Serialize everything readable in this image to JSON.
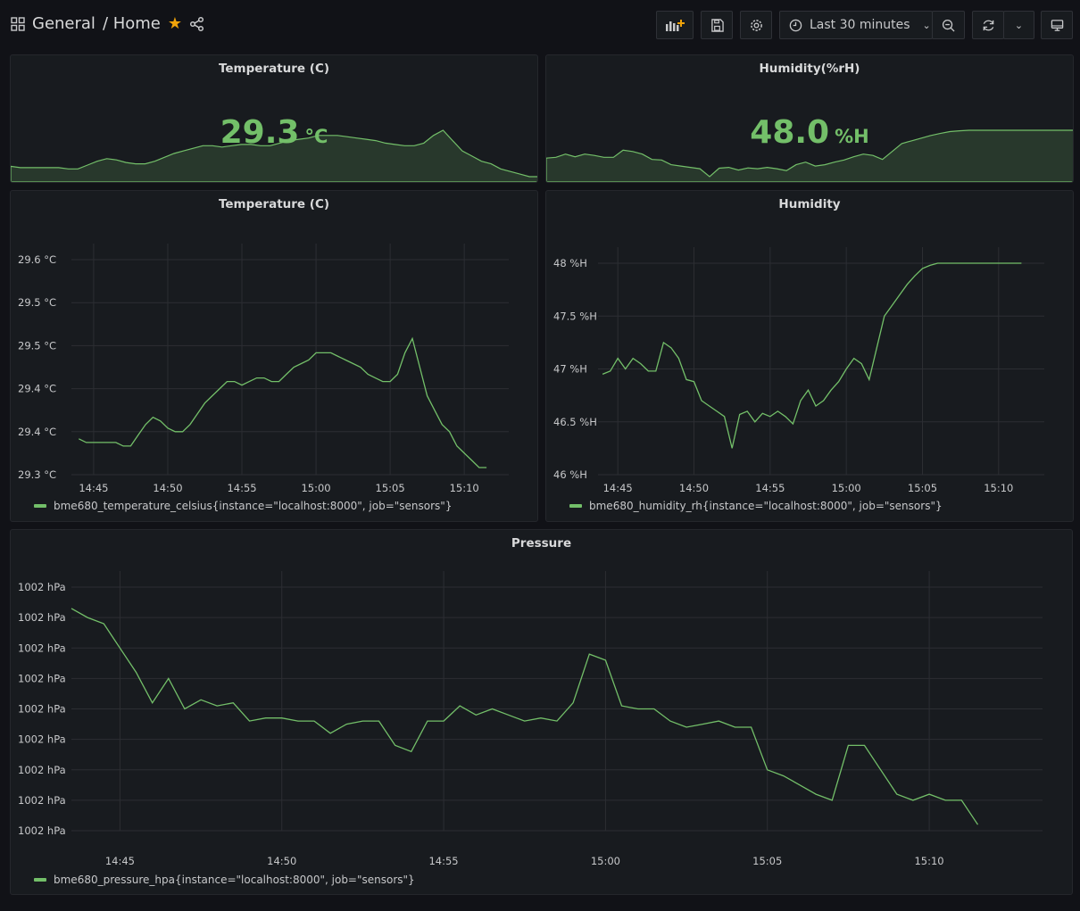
{
  "header": {
    "folder": "General",
    "dashboard": "/ Home",
    "time_range": "Last 30 minutes"
  },
  "icons": [
    "dashboard-grid-icon",
    "star-icon",
    "share-icon",
    "add-panel-icon",
    "save-icon",
    "gear-icon",
    "clock-icon",
    "chevron-down-icon",
    "zoom-out-icon",
    "refresh-icon",
    "tv-icon"
  ],
  "colors": {
    "series": "#73bf69",
    "background": "#111217",
    "panel": "#181b1f"
  },
  "stats": [
    {
      "title": "Temperature (C)",
      "value": "29.3",
      "unit": "°C"
    },
    {
      "title": "Humidity(%rH)",
      "value": "48.0",
      "unit": "%H"
    }
  ],
  "chart_data": [
    {
      "type": "line",
      "title": "Temperature (C)",
      "x_ticks": [
        "14:45",
        "14:50",
        "14:55",
        "15:00",
        "15:05",
        "15:10"
      ],
      "y_ticks": [
        "29.6 °C",
        "29.5 °C",
        "29.5 °C",
        "29.4 °C",
        "29.4 °C",
        "29.3 °C"
      ],
      "ylim": [
        29.3,
        29.6
      ],
      "legend": "bme680_temperature_celsius{instance=\"localhost:8000\", job=\"sensors\"}",
      "x": [
        "14:44",
        "14:44.5",
        "14:45",
        "14:45.5",
        "14:46",
        "14:46.5",
        "14:47",
        "14:47.5",
        "14:48",
        "14:48.5",
        "14:49",
        "14:49.5",
        "14:50",
        "14:50.5",
        "14:51",
        "14:51.5",
        "14:52",
        "14:52.5",
        "14:53",
        "14:53.5",
        "14:54",
        "14:54.5",
        "14:55",
        "14:55.5",
        "14:56",
        "14:56.5",
        "14:57",
        "14:57.5",
        "14:58",
        "14:58.5",
        "14:59",
        "14:59.5",
        "15:00",
        "15:00.5",
        "15:01",
        "15:01.5",
        "15:02",
        "15:02.5",
        "15:03",
        "15:03.5",
        "15:04",
        "15:04.5",
        "15:05",
        "15:05.5",
        "15:06",
        "15:06.5",
        "15:07",
        "15:07.5",
        "15:08",
        "15:08.5",
        "15:09",
        "15:09.5",
        "15:10",
        "15:10.5",
        "15:11",
        "15:11.5"
      ],
      "values": [
        29.35,
        29.345,
        29.345,
        29.345,
        29.345,
        29.345,
        29.34,
        29.34,
        29.355,
        29.37,
        29.38,
        29.375,
        29.365,
        29.36,
        29.36,
        29.37,
        29.385,
        29.4,
        29.41,
        29.42,
        29.43,
        29.43,
        29.425,
        29.43,
        29.435,
        29.435,
        29.43,
        29.43,
        29.44,
        29.45,
        29.455,
        29.46,
        29.47,
        29.47,
        29.47,
        29.465,
        29.46,
        29.455,
        29.45,
        29.44,
        29.435,
        29.43,
        29.43,
        29.44,
        29.47,
        29.49,
        29.45,
        29.41,
        29.39,
        29.37,
        29.36,
        29.34,
        29.33,
        29.32,
        29.31,
        29.31
      ]
    },
    {
      "type": "line",
      "title": "Humidity",
      "x_ticks": [
        "14:45",
        "14:50",
        "14:55",
        "15:00",
        "15:05",
        "15:10"
      ],
      "y_ticks": [
        "48 %H",
        "47.5 %H",
        "47 %H",
        "46.5 %H",
        "46 %H"
      ],
      "ylim": [
        46,
        48
      ],
      "legend": "bme680_humidity_rh{instance=\"localhost:8000\", job=\"sensors\"}",
      "x": [
        "14:44",
        "14:44.5",
        "14:45",
        "14:45.5",
        "14:46",
        "14:46.5",
        "14:47",
        "14:47.5",
        "14:48",
        "14:48.5",
        "14:49",
        "14:49.5",
        "14:50",
        "14:50.5",
        "14:51",
        "14:51.5",
        "14:52",
        "14:52.5",
        "14:53",
        "14:53.5",
        "14:54",
        "14:54.5",
        "14:55",
        "14:55.5",
        "14:56",
        "14:56.5",
        "14:57",
        "14:57.5",
        "14:58",
        "14:58.5",
        "14:59",
        "14:59.5",
        "15:00",
        "15:00.5",
        "15:01",
        "15:01.5",
        "15:02",
        "15:02.5",
        "15:03",
        "15:03.5",
        "15:04",
        "15:04.5",
        "15:05",
        "15:05.5",
        "15:06",
        "15:06.5",
        "15:07",
        "15:07.5",
        "15:08",
        "15:08.5",
        "15:09",
        "15:09.5",
        "15:10",
        "15:10.5",
        "15:11",
        "15:11.5"
      ],
      "values": [
        46.95,
        46.98,
        47.1,
        47.0,
        47.1,
        47.05,
        46.98,
        46.98,
        47.25,
        47.2,
        47.1,
        46.9,
        46.88,
        46.7,
        46.65,
        46.6,
        46.55,
        46.25,
        46.57,
        46.6,
        46.5,
        46.58,
        46.55,
        46.6,
        46.55,
        46.48,
        46.7,
        46.8,
        46.65,
        46.7,
        46.8,
        46.88,
        47.0,
        47.1,
        47.05,
        46.9,
        47.2,
        47.5,
        47.6,
        47.7,
        47.8,
        47.88,
        47.95,
        47.98,
        48.0,
        48.0,
        48.0,
        48.0,
        48.0,
        48.0,
        48.0,
        48.0,
        48.0,
        48.0,
        48.0,
        48.0
      ]
    },
    {
      "type": "line",
      "title": "Pressure",
      "x_ticks": [
        "14:45",
        "14:50",
        "14:55",
        "15:00",
        "15:05",
        "15:10"
      ],
      "y_ticks": [
        "1002 hPa",
        "1002 hPa",
        "1002 hPa",
        "1002 hPa",
        "1002 hPa",
        "1002 hPa",
        "1002 hPa",
        "1002 hPa",
        "1002 hPa"
      ],
      "ylim": [
        0,
        8
      ],
      "legend": "bme680_pressure_hpa{instance=\"localhost:8000\", job=\"sensors\"}",
      "x": [
        "14:43.5",
        "14:44",
        "14:44.5",
        "14:45",
        "14:45.5",
        "14:46",
        "14:46.5",
        "14:47",
        "14:47.5",
        "14:48",
        "14:48.5",
        "14:49",
        "14:49.5",
        "14:50",
        "14:50.5",
        "14:51",
        "14:51.5",
        "14:52",
        "14:52.5",
        "14:53",
        "14:53.5",
        "14:54",
        "14:54.5",
        "14:55",
        "14:55.5",
        "14:56",
        "14:56.5",
        "14:57",
        "14:57.5",
        "14:58",
        "14:58.5",
        "14:59",
        "14:59.5",
        "15:00",
        "15:00.5",
        "15:01",
        "15:01.5",
        "15:02",
        "15:02.5",
        "15:03",
        "15:03.5",
        "15:04",
        "15:04.5",
        "15:05",
        "15:05.5",
        "15:06",
        "15:06.5",
        "15:07",
        "15:07.5",
        "15:08",
        "15:08.5",
        "15:09",
        "15:09.5",
        "15:10",
        "15:10.5",
        "15:11",
        "15:11.5"
      ],
      "values": [
        7.3,
        7.0,
        6.8,
        6.0,
        5.2,
        4.2,
        5.0,
        4.0,
        4.3,
        4.1,
        4.2,
        3.6,
        3.7,
        3.7,
        3.6,
        3.6,
        3.2,
        3.5,
        3.6,
        3.6,
        2.8,
        2.6,
        3.6,
        3.6,
        4.1,
        3.8,
        4.0,
        3.8,
        3.6,
        3.7,
        3.6,
        4.2,
        5.8,
        5.6,
        4.1,
        4.0,
        4.0,
        3.6,
        3.4,
        3.5,
        3.6,
        3.4,
        3.4,
        2.0,
        1.8,
        1.5,
        1.2,
        1.0,
        2.8,
        2.8,
        2.0,
        1.2,
        1.0,
        1.2,
        1.0,
        1.0,
        0.2
      ]
    }
  ]
}
